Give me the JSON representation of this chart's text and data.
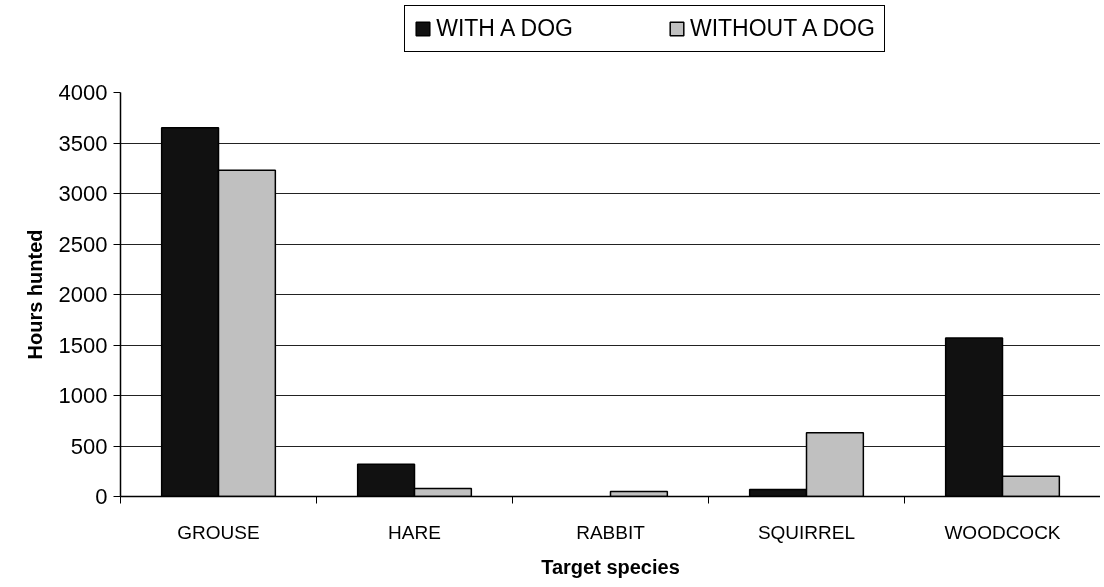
{
  "chart_data": {
    "type": "bar",
    "xlabel": "Target species",
    "ylabel": "Hours hunted",
    "categories": [
      "GROUSE",
      "HARE",
      "RABBIT",
      "SQUIRREL",
      "WOODCOCK"
    ],
    "series": [
      {
        "name": "WITH A DOG",
        "color": "#111111",
        "values": [
          3650,
          320,
          null,
          70,
          1570
        ]
      },
      {
        "name": "WITHOUT A DOG",
        "color": "#c0c0c0",
        "values": [
          3230,
          80,
          50,
          630,
          200
        ]
      }
    ],
    "ylim": [
      0,
      4000
    ],
    "yticks": [
      0,
      500,
      1000,
      1500,
      2000,
      2500,
      3000,
      3500,
      4000
    ],
    "grid": "y",
    "legend": "top"
  }
}
